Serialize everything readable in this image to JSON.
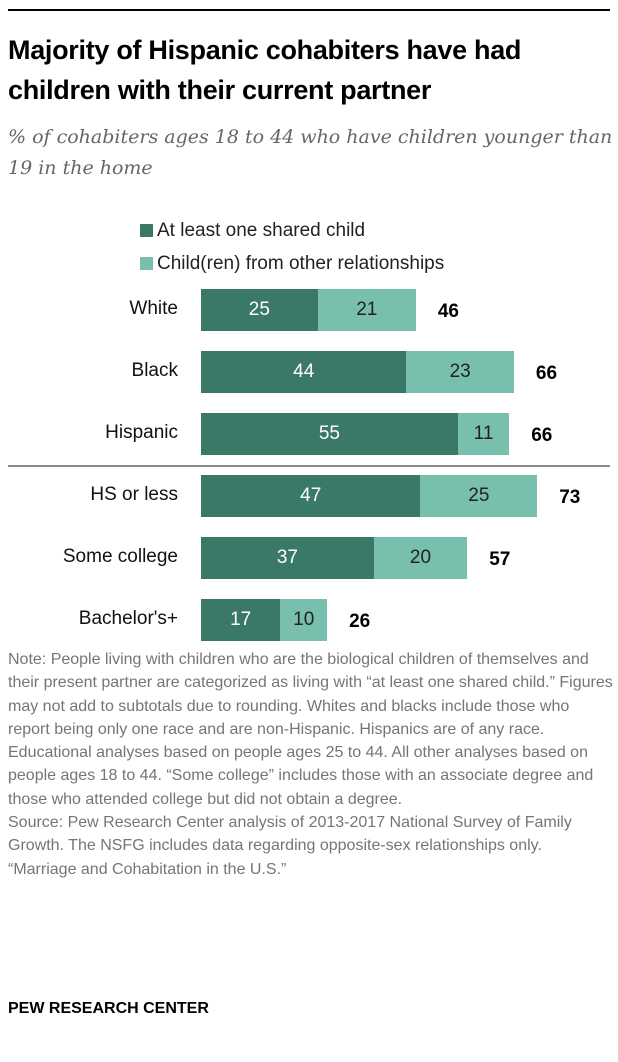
{
  "title": "Majority of Hispanic cohabiters have had children with their current partner",
  "subtitle": "% of cohabiters ages 18 to 44 who have children younger than 19 in the home",
  "colors": {
    "shared": "#3a7868",
    "other": "#78bfad"
  },
  "chart_data": {
    "type": "bar",
    "orientation": "horizontal-stacked",
    "categories": [
      "White",
      "Black",
      "Hispanic",
      "HS or less",
      "Some college",
      "Bachelor's+"
    ],
    "series": [
      {
        "name": "At least one shared child",
        "values": [
          25,
          44,
          55,
          47,
          37,
          17
        ]
      },
      {
        "name": "Child(ren) from other relationships",
        "values": [
          21,
          23,
          11,
          25,
          20,
          10
        ]
      }
    ],
    "totals": [
      46,
      66,
      66,
      73,
      57,
      26
    ],
    "legend_placement": "top"
  },
  "notes": [
    "Note: People living with children who are the biological children of themselves and their present partner are categorized as living with “at least one shared child.” Figures may not add to subtotals due to rounding. Whites and blacks include those who report being only one race and are non-Hispanic. Hispanics are of any race. Educational analyses based on people ages 25 to 44. All other analyses based on people ages 18 to 44. “Some college” includes those with an associate degree and those who attended college but did not obtain a degree.",
    "Source: Pew Research Center analysis of 2013-2017 National Survey of Family Growth. The NSFG includes data regarding opposite-sex relationships only.",
    "“Marriage and Cohabitation in the U.S.”"
  ],
  "footer": "PEW RESEARCH CENTER"
}
